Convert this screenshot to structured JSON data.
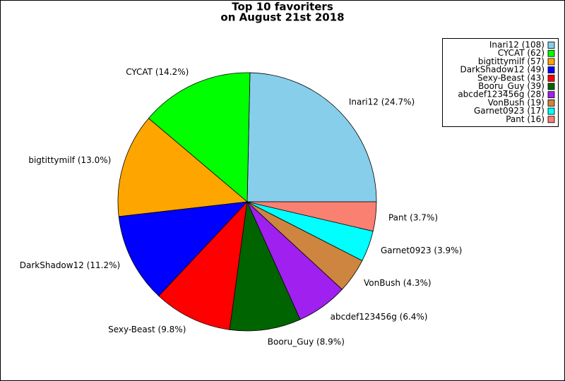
{
  "chart_data": {
    "type": "pie",
    "title": [
      "Top 10 favoriters",
      "on August 21st 2018"
    ],
    "categories": [
      "Inari12",
      "CYCAT",
      "bigtittymilf",
      "DarkShadow12",
      "Sexy-Beast",
      "Booru_Guy",
      "abcdef123456g",
      "VonBush",
      "Garnet0923",
      "Pant"
    ],
    "values": [
      108,
      62,
      57,
      49,
      43,
      39,
      28,
      19,
      17,
      16
    ],
    "value_labels": [
      "Inari12 (24.7%)",
      "CYCAT (14.2%)",
      "bigtittymilf (13.0%)",
      "DarkShadow12 (11.2%)",
      "Sexy-Beast (9.8%)",
      "Booru_Guy (8.9%)",
      "abcdef123456g (6.4%)",
      "VonBush (4.3%)",
      "Garnet0923 (3.9%)",
      "Pant (3.7%)"
    ],
    "legend_labels": [
      "Inari12 (108)",
      "CYCAT (62)",
      "bigtittymilf (57)",
      "DarkShadow12 (49)",
      "Sexy-Beast (43)",
      "Booru_Guy (39)",
      "abcdef123456g (28)",
      "VonBush (19)",
      "Garnet0923 (17)",
      "Pant (16)"
    ],
    "colors": [
      "#87ceeb",
      "#00ff00",
      "#ffa500",
      "#0000ff",
      "#ff0000",
      "#006400",
      "#a020f0",
      "#cd853f",
      "#00ffff",
      "#fa8072"
    ],
    "legend": "upper right"
  }
}
